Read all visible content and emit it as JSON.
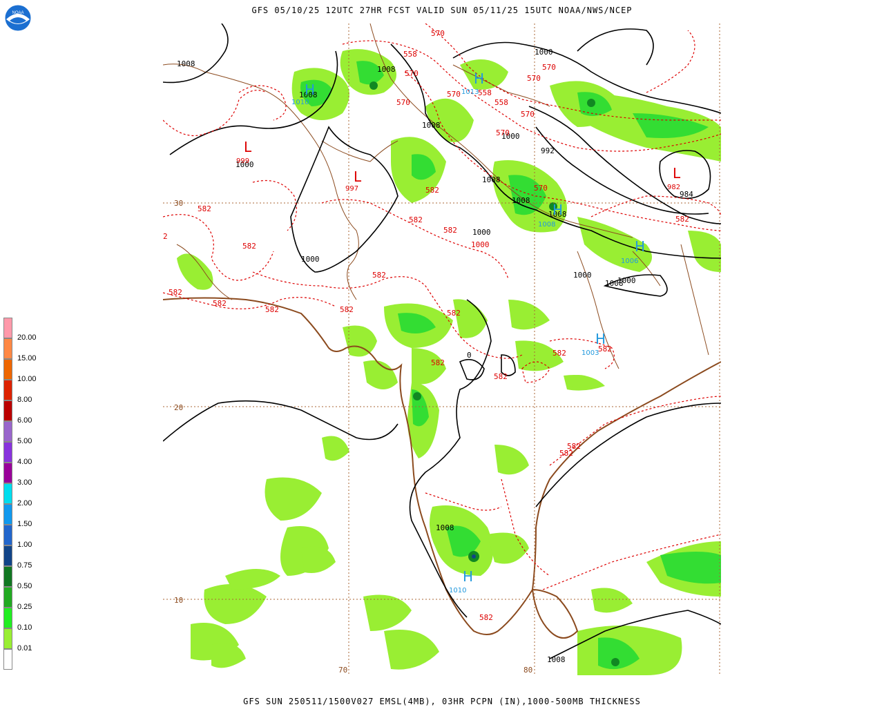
{
  "header": {
    "title": "GFS 05/10/25 12UTC 27HR FCST VALID SUN 05/11/25 15UTC NOAA/NWS/NCEP",
    "logo_text": "NOAA"
  },
  "footer": {
    "title": "GFS SUN 250511/1500V027 EMSL(4MB), 03HR PCPN (IN),1000-500MB THICKNESS"
  },
  "colors": {
    "precip_light": "#99ee33",
    "precip_med": "#33dd33",
    "precip_dark": "#118822",
    "isobar": "#000000",
    "thickness": "#dd0000",
    "coast": "#8b4a1e",
    "grid": "#aa6633",
    "high": "#2299dd",
    "low": "#dd0000"
  },
  "grid_labels": {
    "lat30": "30",
    "lat20": "20",
    "lat10": "10",
    "lon70": "70",
    "lon80": "80"
  },
  "pressure_centers": [
    {
      "type": "H",
      "value": "1010"
    },
    {
      "type": "H",
      "value": "1013"
    },
    {
      "type": "H",
      "value": "1008"
    },
    {
      "type": "H",
      "value": "1006"
    },
    {
      "type": "H",
      "value": "1003"
    },
    {
      "type": "H",
      "value": "1010"
    },
    {
      "type": "L",
      "value": "999"
    },
    {
      "type": "L",
      "value": "997"
    },
    {
      "type": "L",
      "value": "982"
    }
  ],
  "isobar_labels": [
    "1008",
    "1008",
    "1008",
    "1008",
    "1000",
    "1000",
    "1000",
    "1000",
    "1008",
    "1008",
    "1008",
    "1000",
    "1000",
    "1000",
    "1008",
    "1008",
    "992",
    "984",
    "0",
    "1008"
  ],
  "thickness_labels": [
    "570",
    "558",
    "570",
    "570",
    "570",
    "558",
    "570",
    "570",
    "558",
    "570",
    "570",
    "570",
    "582",
    "582",
    "582",
    "582",
    "582",
    "582",
    "582",
    "582",
    "582",
    "582",
    "582",
    "582",
    "582",
    "582",
    "582",
    "582",
    "582",
    "582",
    "582",
    "2",
    "1000"
  ],
  "legend": {
    "items": [
      {
        "label": "20.00",
        "color": "#ff99aa"
      },
      {
        "label": "15.00",
        "color": "#ff8844"
      },
      {
        "label": "10.00",
        "color": "#ee6600"
      },
      {
        "label": "8.00",
        "color": "#dd2200"
      },
      {
        "label": "6.00",
        "color": "#bb0000"
      },
      {
        "label": "5.00",
        "color": "#9966cc"
      },
      {
        "label": "4.00",
        "color": "#8833dd"
      },
      {
        "label": "3.00",
        "color": "#990099"
      },
      {
        "label": "2.00",
        "color": "#00ddee"
      },
      {
        "label": "1.50",
        "color": "#1199ee"
      },
      {
        "label": "1.00",
        "color": "#2266cc"
      },
      {
        "label": "0.75",
        "color": "#114488"
      },
      {
        "label": "0.50",
        "color": "#117722"
      },
      {
        "label": "0.25",
        "color": "#22aa22"
      },
      {
        "label": "0.10",
        "color": "#22ee22"
      },
      {
        "label": "0.01",
        "color": "#99ee33"
      }
    ]
  }
}
